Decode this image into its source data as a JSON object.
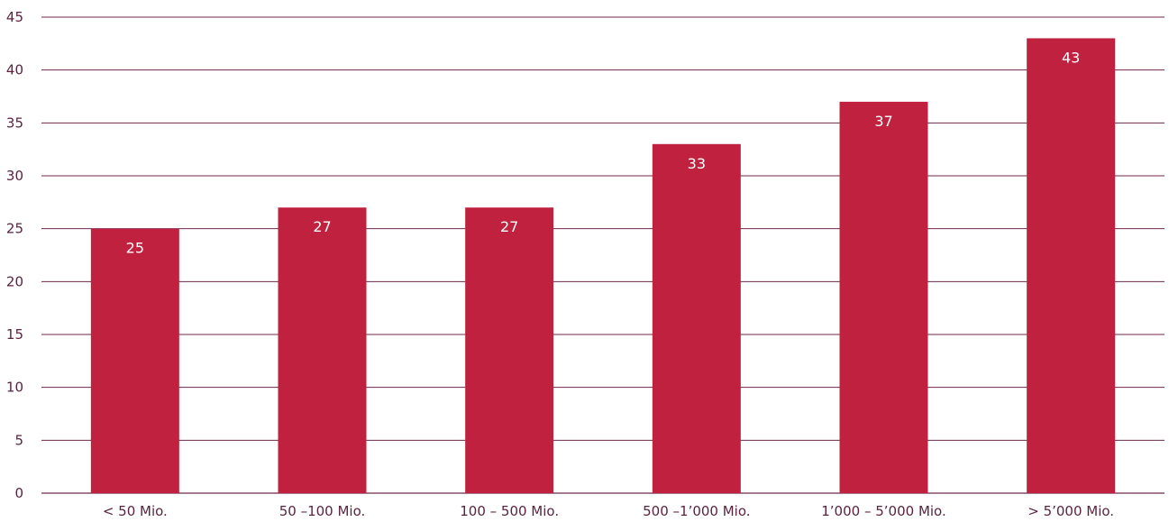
{
  "chart_data": {
    "type": "bar",
    "categories": [
      "< 50 Mio.",
      "50 –100 Mio.",
      "100 – 500 Mio.",
      "500 –1’000 Mio.",
      "1’000 – 5’000 Mio.",
      "> 5’000 Mio."
    ],
    "values": [
      25,
      27,
      27,
      33,
      37,
      43
    ],
    "title": "",
    "xlabel": "",
    "ylabel": "",
    "ylim": [
      0,
      45
    ],
    "yticks": [
      0,
      5,
      10,
      15,
      20,
      25,
      30,
      35,
      40,
      45
    ],
    "grid": true,
    "bar_color": "#c0213f",
    "grid_color": "#6e2a4e",
    "data_labels": true
  }
}
